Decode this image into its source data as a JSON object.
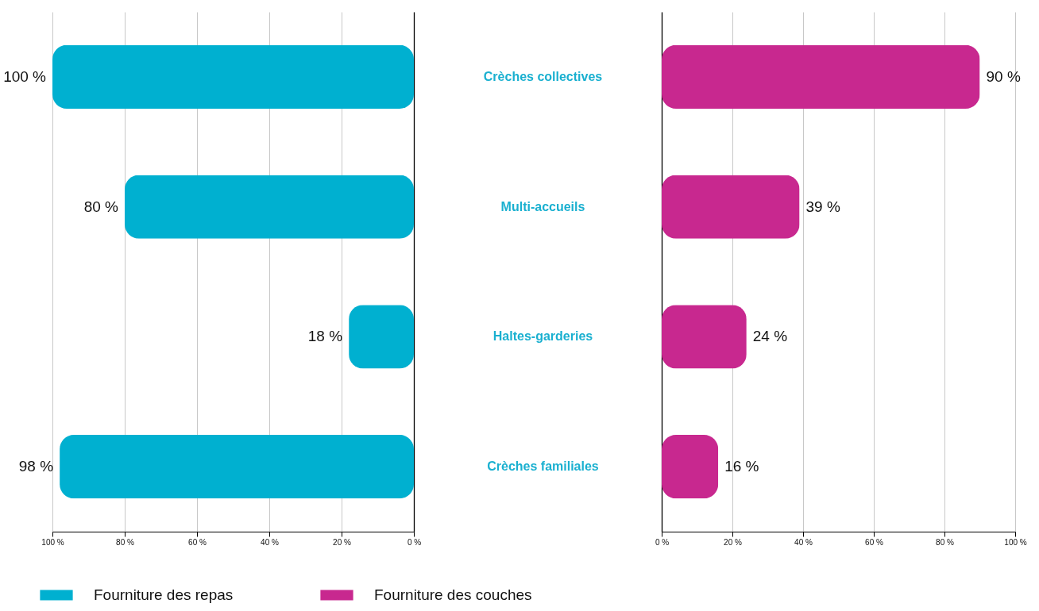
{
  "chart_data": [
    {
      "type": "bar",
      "orientation": "horizontal",
      "categories": [
        "Crèches collectives",
        "Multi-accueils",
        "Haltes-garderies",
        "Crèches familiales"
      ],
      "series": [
        {
          "name": "Fourniture des repas",
          "color": "#00b0d0",
          "values": [
            100,
            80,
            18,
            98
          ],
          "value_labels": [
            "100 %",
            "80 %",
            "18 %",
            "98 %"
          ]
        }
      ],
      "xlim": [
        100,
        0
      ],
      "xticks": [
        {
          "value": 100,
          "label": "100 %"
        },
        {
          "value": 80,
          "label": "80 %"
        },
        {
          "value": 60,
          "label": "60 %"
        },
        {
          "value": 40,
          "label": "40 %"
        },
        {
          "value": 20,
          "label": "20 %"
        },
        {
          "value": 0,
          "label": "0 %"
        }
      ],
      "grid": "x",
      "legend": "bottom"
    },
    {
      "type": "bar",
      "orientation": "horizontal",
      "categories": [
        null,
        null,
        null,
        null
      ],
      "series": [
        {
          "name": "Fourniture des couches",
          "color": "#c8288f",
          "values": [
            90,
            39,
            24,
            16
          ],
          "value_labels": [
            "90 %",
            "39 %",
            "24 %",
            "16 %"
          ]
        }
      ],
      "xlim": [
        0,
        100
      ],
      "xticks": [
        {
          "value": 0,
          "label": "0 %"
        },
        {
          "value": 20,
          "label": "20 %"
        },
        {
          "value": 40,
          "label": "40 %"
        },
        {
          "value": 60,
          "label": "60 %"
        },
        {
          "value": 80,
          "label": "80 %"
        },
        {
          "value": 100,
          "label": "100 %"
        }
      ],
      "grid": "x",
      "legend": "bottom"
    }
  ]
}
